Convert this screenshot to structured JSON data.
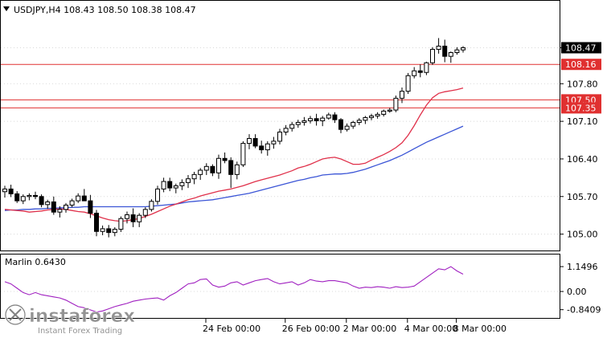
{
  "header": {
    "symbol_line": "USDJPY,H4  108.43 108.50 108.38 108.47"
  },
  "indicator": {
    "title": "Marlin 0.6430"
  },
  "watermark": {
    "brand": "instaforex",
    "tagline": "Instant Forex Trading"
  },
  "colors": {
    "candle_outline": "#000000",
    "bull_fill": "#ffffff",
    "bear_fill": "#000000",
    "fast_ma": "#e0304a",
    "slow_ma": "#3b55d6",
    "levels": "#e03030",
    "oscillator": "#a020c0",
    "price_tag": "#000000",
    "level_tag": "#e03030",
    "grid": "#d8d8d8"
  },
  "chart_data": [
    {
      "type": "candlestick",
      "title": "USDJPY,H4",
      "price_axis": [
        "108.47",
        "107.80",
        "107.10",
        "106.40",
        "105.70",
        "105.00"
      ],
      "time_axis": [
        "24 Feb 00:00",
        "26 Feb 00:00",
        "2 Mar 00:00",
        "4 Mar 00:00",
        "8 Mar 00:00"
      ],
      "ylim": [
        104.8,
        109.0
      ],
      "current_price": "108.47",
      "levels": [
        {
          "value": 108.16,
          "label": "108.16"
        },
        {
          "value": 107.5,
          "label": "107.50"
        },
        {
          "value": 107.35,
          "label": "107.35"
        }
      ],
      "ohlc": [
        [
          105.79,
          105.9,
          105.68,
          105.84
        ],
        [
          105.84,
          105.92,
          105.69,
          105.75
        ],
        [
          105.75,
          105.8,
          105.58,
          105.62
        ],
        [
          105.62,
          105.74,
          105.56,
          105.7
        ],
        [
          105.7,
          105.76,
          105.63,
          105.72
        ],
        [
          105.72,
          105.79,
          105.65,
          105.7
        ],
        [
          105.7,
          105.74,
          105.5,
          105.55
        ],
        [
          105.55,
          105.64,
          105.47,
          105.6
        ],
        [
          105.6,
          105.7,
          105.36,
          105.41
        ],
        [
          105.41,
          105.52,
          105.31,
          105.46
        ],
        [
          105.46,
          105.58,
          105.4,
          105.54
        ],
        [
          105.54,
          105.66,
          105.5,
          105.62
        ],
        [
          105.62,
          105.76,
          105.58,
          105.71
        ],
        [
          105.71,
          105.84,
          105.66,
          105.62
        ],
        [
          105.62,
          105.73,
          105.3,
          105.39
        ],
        [
          105.39,
          105.45,
          104.96,
          105.05
        ],
        [
          105.05,
          105.16,
          104.98,
          105.1
        ],
        [
          105.1,
          105.17,
          104.94,
          105.03
        ],
        [
          105.03,
          105.13,
          104.96,
          105.09
        ],
        [
          105.09,
          105.33,
          105.04,
          105.29
        ],
        [
          105.29,
          105.42,
          105.2,
          105.36
        ],
        [
          105.36,
          105.48,
          105.13,
          105.23
        ],
        [
          105.23,
          105.39,
          105.13,
          105.35
        ],
        [
          105.35,
          105.5,
          105.3,
          105.46
        ],
        [
          105.46,
          105.65,
          105.42,
          105.61
        ],
        [
          105.61,
          105.9,
          105.55,
          105.84
        ],
        [
          105.84,
          106.05,
          105.78,
          105.98
        ],
        [
          105.98,
          106.05,
          105.8,
          105.86
        ],
        [
          105.86,
          105.94,
          105.76,
          105.9
        ],
        [
          105.9,
          106.02,
          105.82,
          105.96
        ],
        [
          105.96,
          106.1,
          105.86,
          106.03
        ],
        [
          106.03,
          106.16,
          105.93,
          106.11
        ],
        [
          106.11,
          106.23,
          106.01,
          106.19
        ],
        [
          106.19,
          106.32,
          106.1,
          106.26
        ],
        [
          106.26,
          106.3,
          106.08,
          106.14
        ],
        [
          106.14,
          106.48,
          106.03,
          106.41
        ],
        [
          106.41,
          106.52,
          106.32,
          106.37
        ],
        [
          106.37,
          106.43,
          105.86,
          106.11
        ],
        [
          106.11,
          106.35,
          106.02,
          106.29
        ],
        [
          106.29,
          106.73,
          106.25,
          106.69
        ],
        [
          106.69,
          106.86,
          106.58,
          106.78
        ],
        [
          106.78,
          106.86,
          106.6,
          106.64
        ],
        [
          106.64,
          106.74,
          106.5,
          106.57
        ],
        [
          106.57,
          106.73,
          106.46,
          106.68
        ],
        [
          106.68,
          106.81,
          106.59,
          106.73
        ],
        [
          106.73,
          106.96,
          106.67,
          106.9
        ],
        [
          106.9,
          107.03,
          106.84,
          106.97
        ],
        [
          106.97,
          107.09,
          106.91,
          107.04
        ],
        [
          107.04,
          107.13,
          106.98,
          107.08
        ],
        [
          107.08,
          107.18,
          107.02,
          107.11
        ],
        [
          107.11,
          107.2,
          107.06,
          107.15
        ],
        [
          107.15,
          107.24,
          107.02,
          107.11
        ],
        [
          107.11,
          107.2,
          107.01,
          107.16
        ],
        [
          107.16,
          107.26,
          107.13,
          107.22
        ],
        [
          107.22,
          107.27,
          107.07,
          107.13
        ],
        [
          107.13,
          107.16,
          106.88,
          106.95
        ],
        [
          106.95,
          107.06,
          106.91,
          107.01
        ],
        [
          107.01,
          107.11,
          106.96,
          107.08
        ],
        [
          107.08,
          107.16,
          107.03,
          107.12
        ],
        [
          107.12,
          107.2,
          107.05,
          107.17
        ],
        [
          107.17,
          107.24,
          107.12,
          107.2
        ],
        [
          107.2,
          107.27,
          107.15,
          107.23
        ],
        [
          107.23,
          107.32,
          107.19,
          107.29
        ],
        [
          107.29,
          107.35,
          107.26,
          107.31
        ],
        [
          107.31,
          107.58,
          107.27,
          107.53
        ],
        [
          107.53,
          107.73,
          107.44,
          107.66
        ],
        [
          107.66,
          108.0,
          107.61,
          107.95
        ],
        [
          107.95,
          108.11,
          107.9,
          108.04
        ],
        [
          108.04,
          108.16,
          107.92,
          108.01
        ],
        [
          108.01,
          108.21,
          107.96,
          108.19
        ],
        [
          108.19,
          108.48,
          108.15,
          108.44
        ],
        [
          108.44,
          108.65,
          108.36,
          108.5
        ],
        [
          108.5,
          108.62,
          108.2,
          108.31
        ],
        [
          108.31,
          108.4,
          108.19,
          108.38
        ],
        [
          108.38,
          108.48,
          108.34,
          108.43
        ],
        [
          108.43,
          108.5,
          108.38,
          108.47
        ]
      ],
      "fast_ma": [
        105.46,
        105.45,
        105.44,
        105.43,
        105.41,
        105.42,
        105.43,
        105.45,
        105.46,
        105.47,
        105.46,
        105.44,
        105.42,
        105.41,
        105.38,
        105.34,
        105.3,
        105.27,
        105.25,
        105.24,
        105.25,
        105.27,
        105.29,
        105.33,
        105.37,
        105.42,
        105.47,
        105.52,
        105.56,
        105.6,
        105.64,
        105.67,
        105.71,
        105.74,
        105.77,
        105.8,
        105.82,
        105.84,
        105.87,
        105.9,
        105.94,
        105.98,
        106.01,
        106.04,
        106.07,
        106.1,
        106.14,
        106.18,
        106.23,
        106.26,
        106.3,
        106.35,
        106.4,
        106.42,
        106.43,
        106.4,
        106.35,
        106.3,
        106.3,
        106.32,
        106.38,
        106.43,
        106.48,
        106.54,
        106.61,
        106.7,
        106.84,
        107.02,
        107.22,
        107.4,
        107.54,
        107.62,
        107.65,
        107.67,
        107.69,
        107.72
      ],
      "slow_ma": [
        105.44,
        105.45,
        105.45,
        105.46,
        105.46,
        105.47,
        105.47,
        105.48,
        105.48,
        105.49,
        105.49,
        105.5,
        105.5,
        105.51,
        105.51,
        105.51,
        105.51,
        105.51,
        105.51,
        105.51,
        105.51,
        105.51,
        105.51,
        105.51,
        105.52,
        105.53,
        105.54,
        105.55,
        105.56,
        105.58,
        105.6,
        105.61,
        105.62,
        105.63,
        105.64,
        105.66,
        105.68,
        105.7,
        105.72,
        105.74,
        105.76,
        105.79,
        105.82,
        105.85,
        105.88,
        105.91,
        105.94,
        105.97,
        106.0,
        106.02,
        106.05,
        106.07,
        106.1,
        106.11,
        106.12,
        106.12,
        106.13,
        106.15,
        106.18,
        106.21,
        106.25,
        106.29,
        106.33,
        106.37,
        106.42,
        106.47,
        106.53,
        106.59,
        106.65,
        106.71,
        106.76,
        106.81,
        106.86,
        106.91,
        106.96,
        107.01
      ]
    },
    {
      "type": "line",
      "title": "Marlin 0.6430",
      "axis_labels": [
        "1.1496",
        "0.00",
        "-0.8409"
      ],
      "ylim": [
        -1.0,
        1.45
      ],
      "values": [
        0.45,
        0.35,
        0.15,
        -0.05,
        -0.15,
        -0.05,
        -0.15,
        -0.2,
        -0.25,
        -0.3,
        -0.4,
        -0.55,
        -0.7,
        -0.75,
        -0.85,
        -0.95,
        -0.9,
        -0.8,
        -0.7,
        -0.62,
        -0.55,
        -0.45,
        -0.4,
        -0.35,
        -0.32,
        -0.3,
        -0.4,
        -0.2,
        -0.05,
        0.15,
        0.35,
        0.4,
        0.55,
        0.58,
        0.3,
        0.2,
        0.25,
        0.4,
        0.45,
        0.3,
        0.4,
        0.5,
        0.55,
        0.6,
        0.45,
        0.35,
        0.4,
        0.45,
        0.3,
        0.4,
        0.55,
        0.48,
        0.45,
        0.5,
        0.5,
        0.45,
        0.4,
        0.25,
        0.15,
        0.2,
        0.18,
        0.22,
        0.2,
        0.15,
        0.22,
        0.18,
        0.2,
        0.25,
        0.45,
        0.65,
        0.85,
        1.05,
        1.0,
        1.15,
        0.95,
        0.8
      ]
    }
  ]
}
